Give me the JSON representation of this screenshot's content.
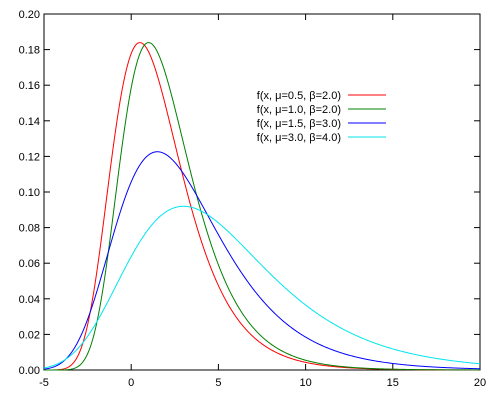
{
  "chart_data": {
    "type": "line",
    "title": "",
    "xlabel": "",
    "ylabel": "",
    "xlim": [
      -5,
      20
    ],
    "ylim": [
      0,
      0.2
    ],
    "x_ticks": [
      -5,
      0,
      5,
      10,
      15,
      20
    ],
    "y_ticks": [
      0.0,
      0.02,
      0.04,
      0.06,
      0.08,
      0.1,
      0.12,
      0.14,
      0.16,
      0.18,
      0.2
    ],
    "x_tick_labels": [
      "-5",
      "0",
      "5",
      "10",
      "15",
      "20"
    ],
    "y_tick_labels": [
      "0.00",
      "0.02",
      "0.04",
      "0.06",
      "0.08",
      "0.10",
      "0.12",
      "0.14",
      "0.16",
      "0.18",
      "0.20"
    ],
    "grid": false,
    "legend_position": "top-right",
    "series": [
      {
        "name": "f(x, μ=0.5, β=2.0)",
        "mu": 0.5,
        "beta": 2.0,
        "color": "#ff0000"
      },
      {
        "name": "f(x, μ=1.0, β=2.0)",
        "mu": 1.0,
        "beta": 2.0,
        "color": "#008000"
      },
      {
        "name": "f(x, μ=1.5, β=3.0)",
        "mu": 1.5,
        "beta": 3.0,
        "color": "#0000ff"
      },
      {
        "name": "f(x, μ=3.0, β=4.0)",
        "mu": 3.0,
        "beta": 4.0,
        "color": "#00e5ee"
      }
    ]
  }
}
